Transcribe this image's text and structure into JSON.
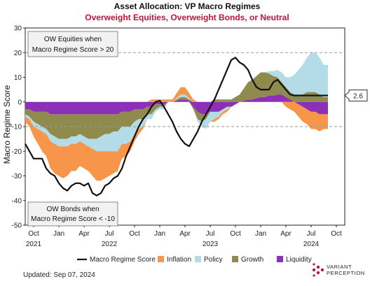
{
  "chart_data": {
    "type": "area",
    "title": "Asset Allocation: VP Macro Regimes",
    "subtitle": "Overweight Equities, Overweight Bonds, or Neutral",
    "ylabel": "Macro Regime Score",
    "xlabel": "",
    "ylim": [
      -50,
      30
    ],
    "xlim": [
      0,
      38
    ],
    "yticks": [
      -50,
      -40,
      -30,
      -20,
      -10,
      0,
      10,
      20,
      30
    ],
    "xticks": [
      {
        "x": 1,
        "label": "Oct",
        "year": "2021"
      },
      {
        "x": 4,
        "label": "Jan",
        "year": ""
      },
      {
        "x": 7,
        "label": "Apr",
        "year": ""
      },
      {
        "x": 10,
        "label": "Jul",
        "year": "2022"
      },
      {
        "x": 13,
        "label": "Oct",
        "year": ""
      },
      {
        "x": 16,
        "label": "Jan",
        "year": ""
      },
      {
        "x": 19,
        "label": "Apr",
        "year": ""
      },
      {
        "x": 22,
        "label": "Jul",
        "year": "2023"
      },
      {
        "x": 25,
        "label": "Oct",
        "year": ""
      },
      {
        "x": 28,
        "label": "Jan",
        "year": ""
      },
      {
        "x": 31,
        "label": "Apr",
        "year": ""
      },
      {
        "x": 34,
        "label": "Jul",
        "year": "2024"
      },
      {
        "x": 37,
        "label": "Oct",
        "year": ""
      }
    ],
    "thresholds": [
      20,
      -10
    ],
    "grid": false,
    "legend_position": "bottom",
    "last_value_label": "2.6",
    "colors": {
      "score": "#111111",
      "inflation": "#F7964A",
      "policy": "#B3DCE8",
      "growth": "#8F8A4E",
      "liquidity": "#8E2FB8",
      "subtitle": "#C0143C",
      "threshold": "#9A9A9A"
    },
    "x": [
      0,
      0.5,
      1,
      1.5,
      2,
      2.5,
      3,
      3.5,
      4,
      4.5,
      5,
      5.5,
      6,
      6.5,
      7,
      7.5,
      8,
      8.5,
      9,
      9.5,
      10,
      10.5,
      11,
      11.5,
      12,
      12.5,
      13,
      13.5,
      14,
      14.5,
      15,
      15.5,
      16,
      16.5,
      17,
      17.5,
      18,
      18.5,
      19,
      19.5,
      20,
      20.5,
      21,
      21.5,
      22,
      22.5,
      23,
      23.5,
      24,
      24.5,
      25,
      25.5,
      26,
      26.5,
      27,
      27.5,
      28,
      28.5,
      29,
      29.5,
      30,
      30.5,
      31,
      31.5,
      32,
      32.5,
      33,
      33.5,
      34,
      34.5,
      35,
      35.5,
      36
    ],
    "series": [
      {
        "name": "Liquidity",
        "values": [
          -3,
          -3,
          -4,
          -4,
          -4,
          -4,
          -5,
          -5,
          -5,
          -5,
          -5,
          -5,
          -5,
          -5,
          -5,
          -5,
          -5,
          -5,
          -5,
          -5,
          -5,
          -5,
          -5,
          -4,
          -4,
          -4,
          -3,
          -3,
          -3,
          -2,
          -2,
          -1,
          -1,
          -1,
          0,
          0,
          0.5,
          1,
          1,
          0.5,
          -2,
          -4,
          -5,
          -5,
          -4,
          -4,
          -4,
          -3,
          -2,
          -2,
          -1,
          0,
          0.5,
          1,
          1,
          1.5,
          2,
          2,
          2.5,
          2.5,
          3,
          3,
          2,
          1,
          0,
          -1,
          -2,
          -3,
          -4,
          -4,
          -5,
          -5,
          -5
        ]
      },
      {
        "name": "Growth",
        "values": [
          -2,
          -3,
          -4,
          -5,
          -6,
          -7,
          -8,
          -9,
          -10,
          -10,
          -10,
          -9,
          -9,
          -8,
          -9,
          -10,
          -10,
          -10,
          -9,
          -8,
          -8,
          -7,
          -7,
          -6,
          -6,
          -6,
          -5,
          -4,
          -4,
          -3,
          -3,
          -2,
          -1,
          -1,
          0,
          0,
          0.5,
          1,
          1,
          0.5,
          -1,
          -3,
          -3,
          -2,
          0,
          1,
          1,
          1,
          1,
          1,
          2,
          3,
          5,
          7,
          8,
          9,
          10,
          10,
          9,
          8,
          7,
          5,
          4,
          3,
          3,
          3,
          3,
          4,
          4,
          4,
          3,
          2,
          2
        ]
      },
      {
        "name": "Policy",
        "values": [
          -1,
          -1,
          -2,
          -2,
          -2,
          -2,
          -3,
          -3,
          -3,
          -3,
          -3,
          -3,
          -3,
          -3,
          -3,
          -3,
          -4,
          -5,
          -6,
          -7,
          -7,
          -8,
          -8,
          -7,
          -7,
          -6,
          -5,
          -4,
          -3,
          -2,
          -2,
          -1,
          -1,
          -1,
          0,
          0,
          0.5,
          1,
          1,
          0.5,
          0,
          -1,
          -2,
          -4,
          -4,
          -3,
          -2,
          -1,
          -1,
          0,
          0,
          0,
          0,
          0,
          0,
          0,
          0,
          0,
          1,
          2,
          3,
          4,
          4,
          6,
          8,
          10,
          12,
          14,
          16,
          16,
          15,
          13,
          13
        ]
      },
      {
        "name": "Inflation",
        "values": [
          -2,
          -3,
          -4,
          -6,
          -8,
          -9,
          -11,
          -12,
          -12,
          -13,
          -12,
          -11,
          -11,
          -10,
          -10,
          -10,
          -11,
          -12,
          -12,
          -11,
          -10,
          -9,
          -8,
          -6,
          -5,
          -4,
          -3,
          -2,
          -1,
          0,
          1,
          1,
          1,
          1,
          1,
          1,
          2,
          3,
          3,
          2,
          1,
          0,
          0,
          0,
          0,
          -1,
          -1,
          -1,
          -1,
          0,
          0,
          0,
          0,
          0,
          0,
          0,
          0,
          0,
          0,
          0,
          0,
          0,
          -2,
          -3,
          -4,
          -5,
          -6,
          -6,
          -7,
          -7,
          -7,
          -6,
          -6
        ]
      }
    ],
    "score": [
      -17,
      -20,
      -23,
      -23,
      -23,
      -27,
      -29,
      -30,
      -33,
      -35,
      -36,
      -34,
      -33,
      -33,
      -34,
      -33,
      -37,
      -38,
      -37,
      -34,
      -33,
      -31,
      -30,
      -27,
      -22,
      -18,
      -14,
      -10,
      -7,
      -5,
      -2,
      0,
      0.5,
      -2,
      -5,
      -8,
      -12,
      -15,
      -17,
      -18,
      -15,
      -12,
      -8,
      -5,
      -2,
      1,
      5,
      9,
      13,
      17,
      18,
      16,
      15,
      13,
      9,
      6,
      5,
      5,
      5,
      8,
      9,
      7,
      5,
      3,
      2.6,
      2.6,
      2.6,
      2.6,
      2.6,
      2.6,
      2.6,
      2.6,
      2.6
    ],
    "annotations": [
      {
        "line1": "OW Equities when",
        "line2": "Macro Regime Score > 20"
      },
      {
        "line1": "OW Bonds when",
        "line2": "Macro Regime Score < -10"
      }
    ],
    "legend": [
      {
        "key": "score",
        "label": "Macro Regime Score"
      },
      {
        "key": "inflation",
        "label": "Inflation"
      },
      {
        "key": "policy",
        "label": "Policy"
      },
      {
        "key": "growth",
        "label": "Growth"
      },
      {
        "key": "liquidity",
        "label": "Liquidity"
      }
    ]
  },
  "footer": {
    "updated": "Updated: Sep 07, 2024",
    "brand_line1": "VARIANT",
    "brand_line2": "PERCEPTION"
  }
}
